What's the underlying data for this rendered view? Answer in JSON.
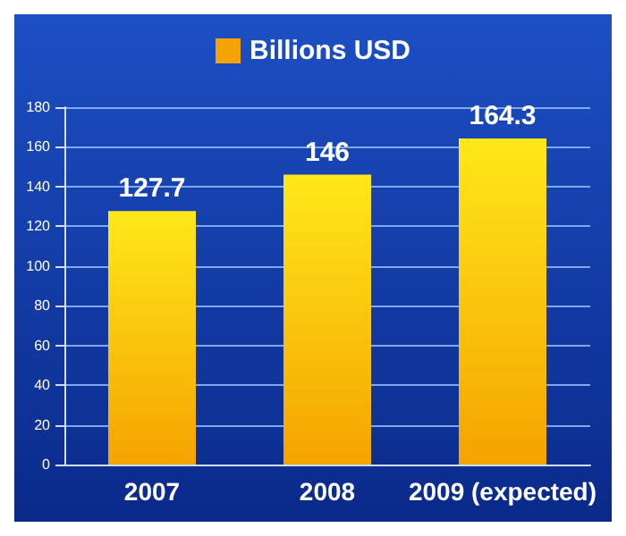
{
  "chart_data": {
    "type": "bar",
    "categories": [
      "2007",
      "2008",
      "2009 (expected)"
    ],
    "series": [
      {
        "name": "Billions USD",
        "color": "#f5a300",
        "values": [
          127.7,
          146,
          164.3
        ]
      }
    ],
    "ylim": [
      0,
      180
    ],
    "yticks": [
      0,
      20,
      40,
      60,
      80,
      100,
      120,
      140,
      160,
      180
    ],
    "grid": "y",
    "legend": "top",
    "data_labels": true
  }
}
